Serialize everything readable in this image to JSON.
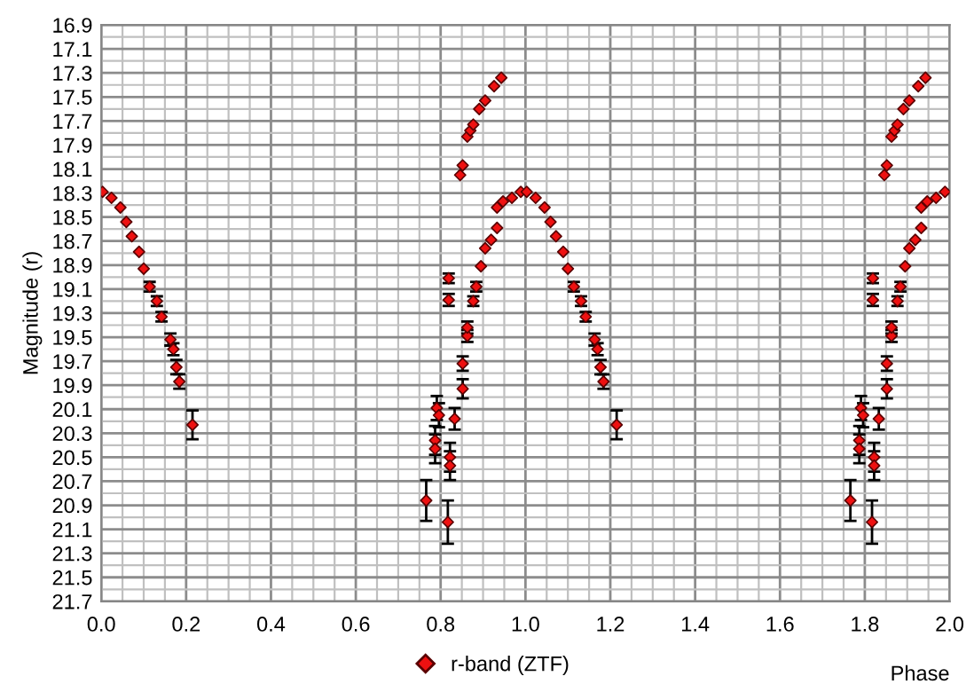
{
  "chart_data": {
    "type": "scatter",
    "xlabel": "Phase",
    "ylabel": "Magnitude (r)",
    "xlim": [
      0,
      2
    ],
    "ylim": [
      21.7,
      16.9
    ],
    "xticks": [
      {
        "value": 0,
        "label": "0.0"
      },
      {
        "value": 0.05,
        "label": null
      },
      {
        "value": 0.1,
        "label": null
      },
      {
        "value": 0.15,
        "label": null
      },
      0.2,
      {
        "value": 0.25,
        "label": null
      },
      {
        "value": 0.3,
        "label": null
      },
      {
        "value": 0.35,
        "label": null
      },
      0.4,
      {
        "value": 0.45,
        "label": null
      },
      {
        "value": 0.5,
        "label": null
      },
      {
        "value": 0.55,
        "label": null
      },
      0.6,
      {
        "value": 0.65,
        "label": null
      },
      {
        "value": 0.7,
        "label": null
      },
      {
        "value": 0.75,
        "label": null
      },
      0.8,
      {
        "value": 0.85,
        "label": null
      },
      {
        "value": 0.9,
        "label": null
      },
      {
        "value": 0.95,
        "label": null
      },
      {
        "value": 1,
        "label": "1.0"
      },
      {
        "value": 1.05,
        "label": null
      },
      {
        "value": 1.1,
        "label": null
      },
      {
        "value": 1.15,
        "label": null
      },
      1.2,
      {
        "value": 1.25,
        "label": null
      },
      {
        "value": 1.3,
        "label": null
      },
      {
        "value": 1.35,
        "label": null
      },
      1.4,
      {
        "value": 1.45,
        "label": null
      },
      {
        "value": 1.5,
        "label": null
      },
      {
        "value": 1.55,
        "label": null
      },
      1.6,
      {
        "value": 1.65,
        "label": null
      },
      {
        "value": 1.7,
        "label": null
      },
      {
        "value": 1.75,
        "label": null
      },
      1.8,
      {
        "value": 1.85,
        "label": null
      },
      {
        "value": 1.9,
        "label": null
      },
      {
        "value": 1.95,
        "label": null
      },
      {
        "value": 2,
        "label": "2.0"
      }
    ],
    "yticks": [
      16.9,
      {
        "value": 17.0,
        "label": null
      },
      17.1,
      {
        "value": 17.2,
        "label": null
      },
      17.3,
      {
        "value": 17.4,
        "label": null
      },
      17.5,
      {
        "value": 17.6,
        "label": null
      },
      17.7,
      {
        "value": 17.8,
        "label": null
      },
      17.9,
      {
        "value": 18.0,
        "label": null
      },
      18.1,
      {
        "value": 18.2,
        "label": null
      },
      18.3,
      {
        "value": 18.4,
        "label": null
      },
      18.5,
      {
        "value": 18.6,
        "label": null
      },
      18.7,
      {
        "value": 18.8,
        "label": null
      },
      18.9,
      {
        "value": 19.0,
        "label": null
      },
      19.1,
      {
        "value": 19.2,
        "label": null
      },
      19.3,
      {
        "value": 19.4,
        "label": null
      },
      19.5,
      {
        "value": 19.6,
        "label": null
      },
      19.7,
      {
        "value": 19.8,
        "label": null
      },
      19.9,
      {
        "value": 20.0,
        "label": null
      },
      20.1,
      {
        "value": 20.2,
        "label": null
      },
      20.3,
      {
        "value": 20.4,
        "label": null
      },
      20.5,
      {
        "value": 20.6,
        "label": null
      },
      20.7,
      {
        "value": 20.8,
        "label": null
      },
      20.9,
      {
        "value": 21.0,
        "label": null
      },
      21.1,
      {
        "value": 21.2,
        "label": null
      },
      21.3,
      {
        "value": 21.4,
        "label": null
      },
      21.5,
      {
        "value": 21.6,
        "label": null
      },
      21.7
    ],
    "grid": true,
    "legend": "bottom",
    "marker": "diamond",
    "series": [
      {
        "name": "r-band (ZTF)",
        "color": "#ee1111",
        "x": [
          0.003,
          0.024,
          0.045,
          0.059,
          0.072,
          0.089,
          0.1,
          0.114,
          0.131,
          0.142,
          0.163,
          0.17,
          0.177,
          0.184,
          0.215,
          0.766,
          0.787,
          0.787,
          0.791,
          0.796,
          0.817,
          0.819,
          0.819,
          0.822,
          0.822,
          0.833,
          0.846,
          0.852,
          0.852,
          0.852,
          0.863,
          0.863,
          0.863,
          0.87,
          0.877,
          0.877,
          0.884,
          0.891,
          0.895,
          0.905,
          0.905,
          0.919,
          0.926,
          0.933,
          0.933,
          0.943,
          0.947,
          0.968,
          0.989,
          1.003,
          1.024,
          1.045,
          1.059,
          1.072,
          1.089,
          1.1,
          1.114,
          1.131,
          1.142,
          1.163,
          1.17,
          1.177,
          1.184,
          1.215,
          1.766,
          1.787,
          1.787,
          1.791,
          1.796,
          1.817,
          1.819,
          1.819,
          1.822,
          1.822,
          1.833,
          1.846,
          1.852,
          1.852,
          1.852,
          1.863,
          1.863,
          1.863,
          1.87,
          1.877,
          1.877,
          1.884,
          1.891,
          1.895,
          1.905,
          1.905,
          1.919,
          1.926,
          1.933,
          1.933,
          1.943,
          1.947,
          1.968,
          1.989
        ],
        "values": [
          18.29,
          18.34,
          18.42,
          18.54,
          18.66,
          18.79,
          18.93,
          19.08,
          19.2,
          19.33,
          19.52,
          19.6,
          19.75,
          19.87,
          20.23,
          20.86,
          20.36,
          20.43,
          20.09,
          20.15,
          21.04,
          19.01,
          19.19,
          20.5,
          20.57,
          20.18,
          18.15,
          18.07,
          19.93,
          19.72,
          19.49,
          19.42,
          17.83,
          17.78,
          19.2,
          17.73,
          19.08,
          17.6,
          18.91,
          18.76,
          17.53,
          18.69,
          17.41,
          18.59,
          18.42,
          17.34,
          18.37,
          18.34,
          18.29,
          18.29,
          18.34,
          18.42,
          18.54,
          18.66,
          18.79,
          18.93,
          19.08,
          19.2,
          19.33,
          19.52,
          19.6,
          19.75,
          19.87,
          20.23,
          20.86,
          20.36,
          20.43,
          20.09,
          20.15,
          21.04,
          19.01,
          19.19,
          20.5,
          20.57,
          20.18,
          18.15,
          18.07,
          19.93,
          19.72,
          19.49,
          19.42,
          17.83,
          17.78,
          19.2,
          17.73,
          19.08,
          17.6,
          18.91,
          18.76,
          17.53,
          18.69,
          17.41,
          18.59,
          18.42,
          17.34,
          18.37,
          18.34,
          18.29
        ],
        "errors": [
          null,
          null,
          null,
          null,
          null,
          null,
          null,
          0.04,
          0.04,
          0.04,
          0.05,
          0.05,
          0.06,
          0.06,
          0.12,
          0.17,
          0.12,
          0.12,
          0.1,
          0.1,
          0.18,
          0.04,
          0.05,
          0.12,
          0.12,
          0.09,
          null,
          null,
          0.08,
          0.06,
          0.05,
          0.05,
          null,
          null,
          0.04,
          null,
          0.04,
          null,
          null,
          null,
          null,
          null,
          null,
          null,
          null,
          null,
          null,
          null,
          null,
          null,
          null,
          null,
          null,
          null,
          null,
          null,
          0.04,
          0.04,
          0.04,
          0.05,
          0.05,
          0.06,
          0.06,
          0.12,
          0.17,
          0.12,
          0.12,
          0.1,
          0.1,
          0.18,
          0.04,
          0.05,
          0.12,
          0.12,
          0.09,
          null,
          null,
          0.08,
          0.06,
          0.05,
          0.05,
          null,
          null,
          0.04,
          null,
          0.04,
          null,
          null,
          null,
          null,
          null,
          null,
          null,
          null,
          null,
          null,
          null,
          null
        ]
      }
    ]
  }
}
